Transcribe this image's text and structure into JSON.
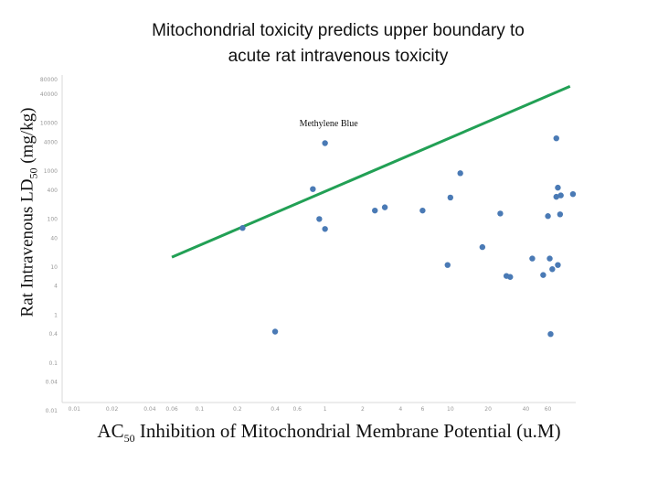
{
  "chart_data": {
    "type": "scatter",
    "title_lines": [
      "Mitochondrial  toxicity predicts upper boundary to",
      "acute rat intravenous toxicity"
    ],
    "ylabel": {
      "main": "Rat Intravenous LD",
      "sub": "50",
      "unit": " (mg/kg)"
    },
    "xlabel": {
      "main": "AC",
      "sub": "50",
      "rest": " Inhibition of Mitochondrial Membrane Potential (u.M)"
    },
    "x_scale": "log",
    "y_scale": "log",
    "xlim": [
      0.008,
      100
    ],
    "ylim": [
      0.015,
      100000
    ],
    "x_ticks": [
      {
        "v": 0.01,
        "label": "0.01"
      },
      {
        "v": 0.02,
        "label": "0.02"
      },
      {
        "v": 0.04,
        "label": "0.04"
      },
      {
        "v": 0.06,
        "label": "0.06"
      },
      {
        "v": 0.1,
        "label": "0.1"
      },
      {
        "v": 0.2,
        "label": "0.2"
      },
      {
        "v": 0.4,
        "label": "0.4"
      },
      {
        "v": 0.6,
        "label": "0.6"
      },
      {
        "v": 1,
        "label": "1"
      },
      {
        "v": 2,
        "label": "2"
      },
      {
        "v": 4,
        "label": "4"
      },
      {
        "v": 6,
        "label": "6"
      },
      {
        "v": 10,
        "label": "10"
      },
      {
        "v": 20,
        "label": "20"
      },
      {
        "v": 40,
        "label": "40"
      },
      {
        "v": 60,
        "label": "60"
      }
    ],
    "y_ticks": [
      {
        "v": 80000,
        "label": "80000"
      },
      {
        "v": 40000,
        "label": "40000"
      },
      {
        "v": 10000,
        "label": "10000"
      },
      {
        "v": 4000,
        "label": "4000"
      },
      {
        "v": 1000,
        "label": "1000"
      },
      {
        "v": 400,
        "label": "400"
      },
      {
        "v": 100,
        "label": "100"
      },
      {
        "v": 40,
        "label": "40"
      },
      {
        "v": 10,
        "label": "10"
      },
      {
        "v": 4,
        "label": "4"
      },
      {
        "v": 1,
        "label": "1"
      },
      {
        "v": 0.4,
        "label": "0.4"
      },
      {
        "v": 0.1,
        "label": "0.1"
      },
      {
        "v": 0.04,
        "label": "0.04"
      },
      {
        "v": 0.01,
        "label": "0.01"
      }
    ],
    "series": [
      {
        "name": "compounds",
        "color": "#4a7ab5",
        "points": [
          {
            "x": 0.22,
            "y": 65
          },
          {
            "x": 0.4,
            "y": 0.45
          },
          {
            "x": 0.8,
            "y": 420
          },
          {
            "x": 0.9,
            "y": 100
          },
          {
            "x": 1.0,
            "y": 3800
          },
          {
            "x": 1.0,
            "y": 62
          },
          {
            "x": 2.5,
            "y": 150
          },
          {
            "x": 3.0,
            "y": 175
          },
          {
            "x": 6.0,
            "y": 150
          },
          {
            "x": 9.5,
            "y": 11
          },
          {
            "x": 10.0,
            "y": 280
          },
          {
            "x": 12.0,
            "y": 900
          },
          {
            "x": 18.0,
            "y": 26
          },
          {
            "x": 25.0,
            "y": 130
          },
          {
            "x": 28.0,
            "y": 6.5
          },
          {
            "x": 30.0,
            "y": 6.2
          },
          {
            "x": 45.0,
            "y": 15
          },
          {
            "x": 55.0,
            "y": 6.8
          },
          {
            "x": 60.0,
            "y": 115
          },
          {
            "x": 62.0,
            "y": 15
          },
          {
            "x": 63.0,
            "y": 0.4
          },
          {
            "x": 65.0,
            "y": 9
          },
          {
            "x": 70.0,
            "y": 4800
          },
          {
            "x": 70.0,
            "y": 290
          },
          {
            "x": 72.0,
            "y": 450
          },
          {
            "x": 72.0,
            "y": 11
          },
          {
            "x": 75.0,
            "y": 125
          },
          {
            "x": 76.0,
            "y": 310
          },
          {
            "x": 95.0,
            "y": 330
          }
        ]
      }
    ],
    "boundary_line": {
      "color": "#22a055",
      "points": [
        {
          "x": 0.06,
          "y": 16
        },
        {
          "x": 90,
          "y": 58000
        }
      ]
    },
    "annotations": [
      {
        "text": "Methylene Blue",
        "x": 1.0,
        "y": 8500
      }
    ]
  }
}
